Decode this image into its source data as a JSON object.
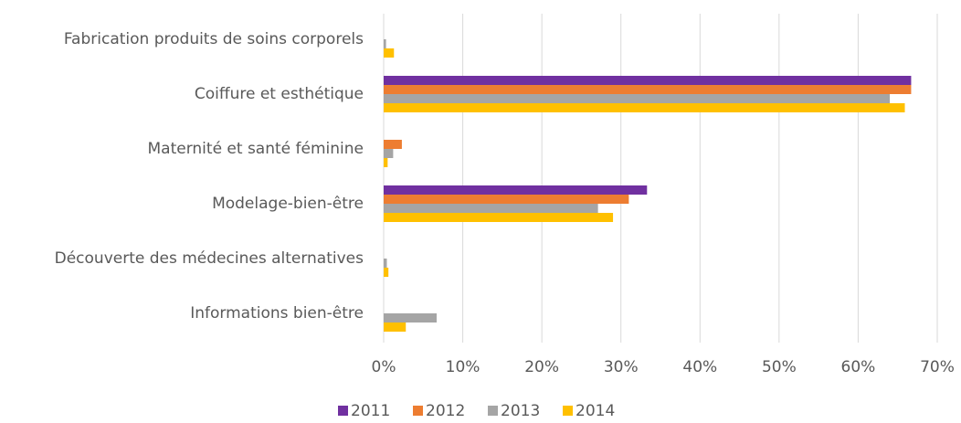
{
  "chart_data": {
    "type": "bar",
    "orientation": "horizontal",
    "categories": [
      "Fabrication produits de soins corporels",
      "Coiffure et esthétique",
      "Maternité et santé féminine",
      "Modelage-bien-être",
      "Découverte des médecines alternatives",
      "Informations bien-être"
    ],
    "series": [
      {
        "name": "2011",
        "color": "#7030a0",
        "values": [
          0,
          66.7,
          0,
          33.3,
          0,
          0
        ]
      },
      {
        "name": "2012",
        "color": "#ed7d31",
        "values": [
          0,
          66.7,
          2.3,
          31.0,
          0,
          0
        ]
      },
      {
        "name": "2013",
        "color": "#a5a5a5",
        "values": [
          0.3,
          64.0,
          1.2,
          27.1,
          0.4,
          6.7
        ]
      },
      {
        "name": "2014",
        "color": "#ffc000",
        "values": [
          1.3,
          65.9,
          0.5,
          29.0,
          0.6,
          2.8
        ]
      }
    ],
    "xlim": [
      0,
      70
    ],
    "xticks": [
      {
        "value": 0,
        "label": "0%"
      },
      {
        "value": 10,
        "label": "10%"
      },
      {
        "value": 20,
        "label": "20%"
      },
      {
        "value": 30,
        "label": "30%"
      },
      {
        "value": 40,
        "label": "40%"
      },
      {
        "value": 50,
        "label": "50%"
      },
      {
        "value": 60,
        "label": "60%"
      },
      {
        "value": 70,
        "label": "70%"
      }
    ],
    "grid": true,
    "legend": "bottom"
  }
}
